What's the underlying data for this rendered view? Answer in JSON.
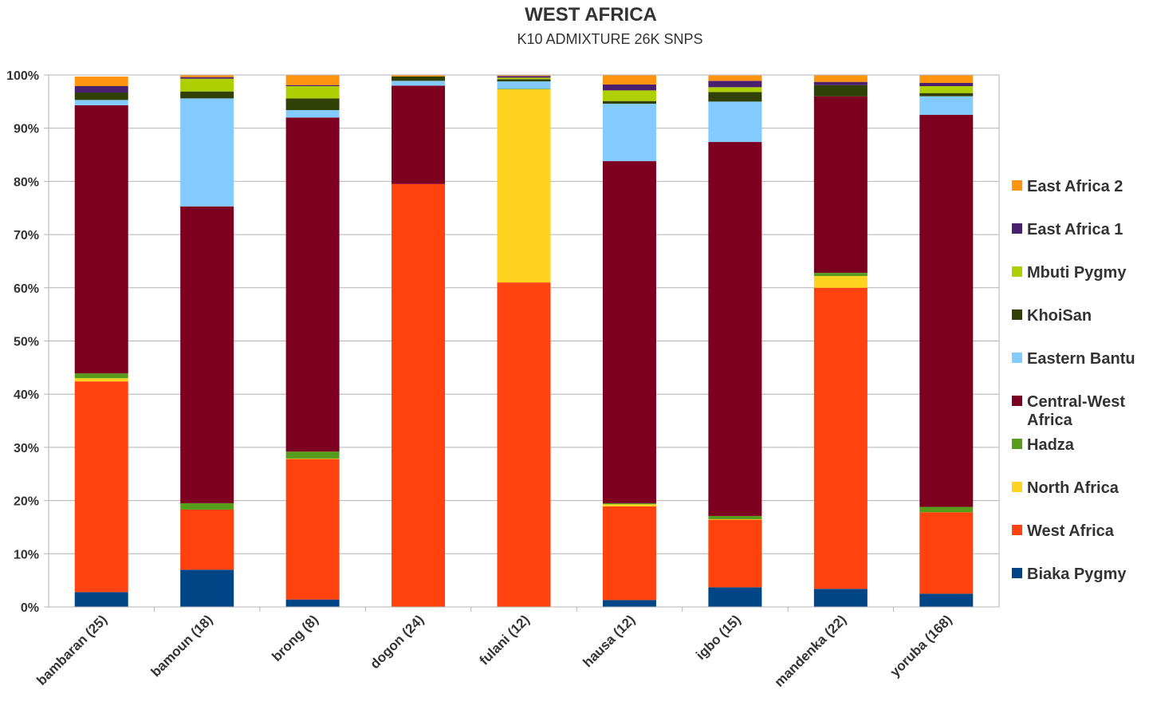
{
  "chart_data": {
    "type": "bar",
    "stacked": true,
    "title": "WEST AFRICA",
    "subtitle": "K10 ADMIXTURE 26K SNPS",
    "ylim": [
      0,
      100
    ],
    "y_ticks": [
      "0%",
      "10%",
      "20%",
      "30%",
      "40%",
      "50%",
      "60%",
      "70%",
      "80%",
      "90%",
      "100%"
    ],
    "grid": true,
    "legend_position": "right",
    "categories": [
      "bambaran (25)",
      "bamoun (18)",
      "brong (8)",
      "dogon (24)",
      "fulani (12)",
      "hausa (12)",
      "igbo (15)",
      "mandenka (22)",
      "yoruba (168)"
    ],
    "series": [
      {
        "name": "Biaka Pygmy",
        "color": "#004586",
        "values": [
          2.8,
          7.0,
          1.4,
          0.0,
          0.0,
          1.3,
          3.7,
          3.4,
          2.5
        ]
      },
      {
        "name": "West Africa",
        "color": "#ff420e",
        "values": [
          39.6,
          11.3,
          26.4,
          79.5,
          61.0,
          17.6,
          12.7,
          56.6,
          15.3
        ]
      },
      {
        "name": "North Africa",
        "color": "#ffd320",
        "values": [
          0.6,
          0.0,
          0.1,
          0.0,
          36.3,
          0.4,
          0.1,
          2.2,
          0.0
        ]
      },
      {
        "name": "Hadza",
        "color": "#579d1c",
        "values": [
          0.9,
          1.2,
          1.3,
          0.0,
          0.1,
          0.2,
          0.6,
          0.6,
          1.0
        ]
      },
      {
        "name": "Central-West Africa",
        "color": "#7e0021",
        "values": [
          50.4,
          55.8,
          62.8,
          18.5,
          0.0,
          64.3,
          70.3,
          33.2,
          73.7
        ]
      },
      {
        "name": "Eastern Bantu",
        "color": "#83caff",
        "values": [
          1.0,
          20.3,
          1.4,
          0.9,
          1.4,
          10.8,
          7.6,
          0.0,
          3.5
        ]
      },
      {
        "name": "KhoiSan",
        "color": "#314004",
        "values": [
          1.4,
          1.3,
          2.2,
          0.8,
          0.4,
          0.5,
          1.8,
          2.1,
          0.6
        ]
      },
      {
        "name": "Mbuti Pygmy",
        "color": "#aecf00",
        "values": [
          0.0,
          2.4,
          2.3,
          0.0,
          0.3,
          2.0,
          0.9,
          0.0,
          1.3
        ]
      },
      {
        "name": "East Africa 1",
        "color": "#4b1f6f",
        "values": [
          1.2,
          0.3,
          0.2,
          0.0,
          0.3,
          1.1,
          1.2,
          0.6,
          0.6
        ]
      },
      {
        "name": "East Africa 2",
        "color": "#ff950e",
        "values": [
          1.8,
          0.4,
          1.9,
          0.3,
          0.2,
          1.8,
          1.0,
          1.3,
          1.5
        ]
      }
    ],
    "legend_order": [
      "East Africa 2",
      "East Africa 1",
      "Mbuti Pygmy",
      "KhoiSan",
      "Eastern Bantu",
      "Central-West Africa",
      "Hadza",
      "North Africa",
      "West Africa",
      "Biaka Pygmy"
    ],
    "legend_display": {
      "East Africa 2": [
        "East Africa 2"
      ],
      "East Africa 1": [
        "East Africa 1"
      ],
      "Mbuti Pygmy": [
        "Mbuti Pygmy"
      ],
      "KhoiSan": [
        "KhoiSan"
      ],
      "Eastern Bantu": [
        "Eastern Bantu"
      ],
      "Central-West Africa": [
        "Central-West",
        "Africa"
      ],
      "Hadza": [
        "Hadza"
      ],
      "North Africa": [
        "North Africa"
      ],
      "West Africa": [
        "West Africa"
      ],
      "Biaka Pygmy": [
        "Biaka Pygmy"
      ]
    }
  }
}
